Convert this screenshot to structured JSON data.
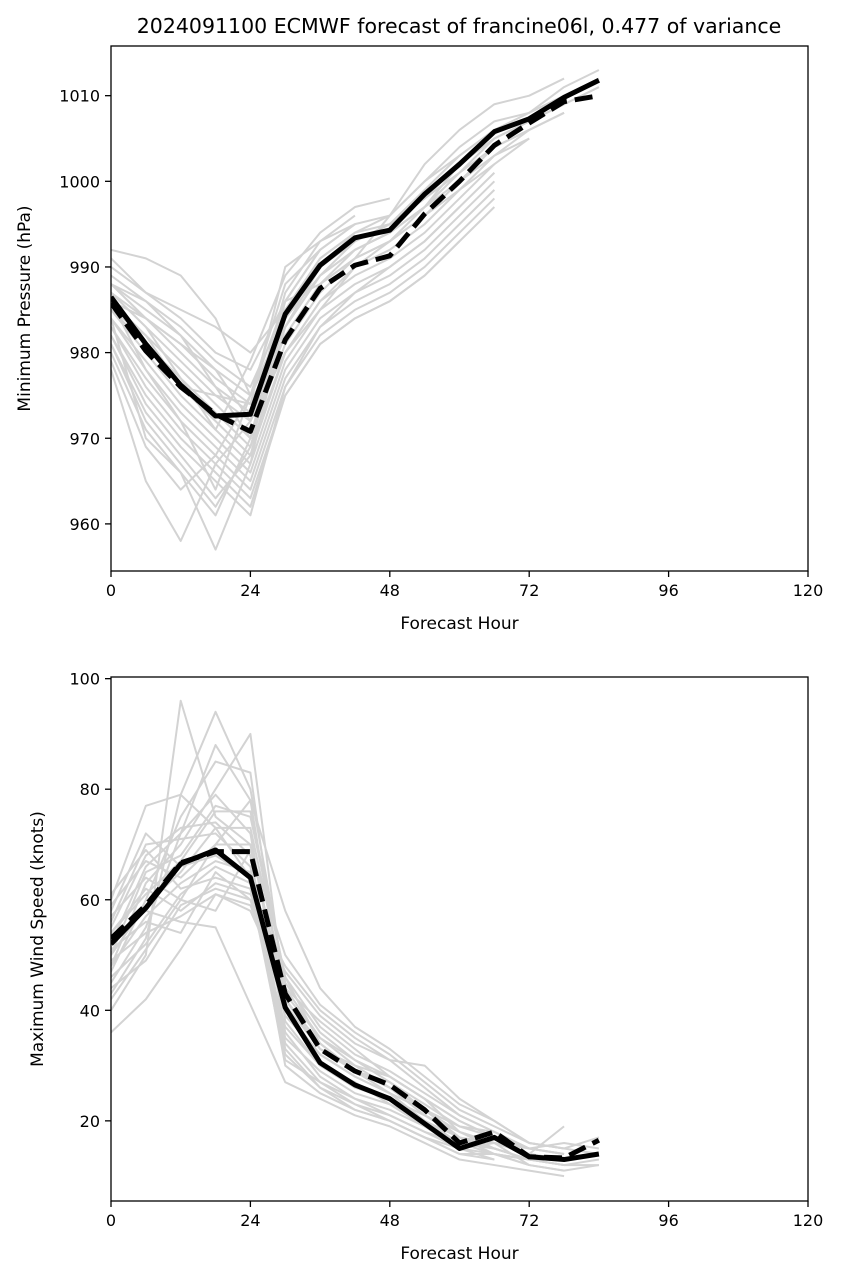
{
  "title": "2024091100 ECMWF forecast of francine06l, 0.477 of variance",
  "colors": {
    "ensemble": "#d3d3d3",
    "mean": "#000000",
    "deterministic": "#000000"
  },
  "chart_data": [
    {
      "type": "line",
      "xlabel": "Forecast Hour",
      "ylabel": "Minimum Pressure (hPa)",
      "xlim": [
        0,
        120
      ],
      "ylim": [
        954.5,
        1015.8
      ],
      "xticks": [
        0,
        24,
        48,
        72,
        96,
        120
      ],
      "yticks": [
        960,
        970,
        980,
        990,
        1000,
        1010
      ],
      "x": [
        0,
        6,
        12,
        18,
        24,
        30,
        36,
        42,
        48,
        54,
        60,
        66,
        72,
        78,
        84
      ],
      "series": [
        {
          "style": "solid",
          "values": [
            986.5,
            981,
            976.2,
            972.6,
            972.8,
            984.5,
            990.2,
            993.4,
            994.3,
            998.5,
            1002,
            1005.8,
            1007.3,
            1009.8,
            1011.8
          ]
        },
        {
          "style": "dashed",
          "values": [
            985.8,
            980.2,
            976,
            972.8,
            970.8,
            981.5,
            987.5,
            990.2,
            991.3,
            996.2,
            1000,
            1004.2,
            1006.8,
            1009.3,
            1010
          ]
        }
      ],
      "ensemble_members": [
        [
          992,
          991,
          989,
          984,
          975,
          983,
          990,
          994,
          996,
          1000,
          1004,
          1007,
          1008,
          1011,
          1013
        ],
        [
          991,
          987,
          985,
          983,
          980,
          985,
          991,
          994,
          995,
          999,
          1003,
          1006,
          1007,
          1009,
          1011
        ],
        [
          990,
          987,
          984,
          980,
          978,
          986,
          992,
          995,
          996,
          1000,
          1003,
          1006,
          1008,
          1010,
          1012
        ],
        [
          989,
          986,
          983,
          979,
          976,
          985,
          990,
          993,
          995,
          998,
          1002,
          1005,
          1007,
          1009,
          1011
        ],
        [
          988,
          985,
          982,
          978,
          975,
          984,
          989,
          993,
          995,
          998,
          1001,
          1005,
          1007,
          1009
        ],
        [
          988,
          984,
          981,
          977,
          974,
          983,
          989,
          992,
          994,
          997,
          1001,
          1004,
          1006,
          1008
        ],
        [
          987,
          984,
          980,
          976,
          973,
          982,
          988,
          992,
          994,
          997,
          1000,
          1004,
          1006,
          1008
        ],
        [
          987,
          983,
          979,
          975,
          972,
          982,
          988,
          991,
          993,
          996,
          1000,
          1003,
          1006
        ],
        [
          986,
          982,
          978,
          974,
          970,
          981,
          987,
          991,
          993,
          996,
          999,
          1003,
          1005
        ],
        [
          986,
          981,
          977,
          973,
          969,
          980,
          986,
          990,
          992,
          995,
          999,
          1002,
          1005
        ],
        [
          985,
          981,
          976,
          972,
          968,
          980,
          986,
          989,
          991,
          994,
          998,
          1002
        ],
        [
          985,
          980,
          975,
          971,
          967,
          979,
          985,
          988,
          990,
          993,
          997,
          1001
        ],
        [
          984,
          979,
          974,
          970,
          966,
          978,
          984,
          987,
          989,
          992,
          996,
          1000
        ],
        [
          984,
          978,
          973,
          969,
          965,
          977,
          983,
          986,
          988,
          991,
          995,
          999
        ],
        [
          983,
          977,
          972,
          968,
          964,
          976,
          982,
          985,
          987,
          990,
          994,
          998
        ],
        [
          983,
          976,
          971,
          967,
          963,
          975,
          981,
          984,
          986,
          989,
          993,
          997
        ],
        [
          982,
          975,
          970,
          966,
          962,
          975,
          981,
          984,
          986,
          989,
          993
        ],
        [
          982,
          974,
          969,
          965,
          961,
          976,
          983,
          987,
          990,
          993,
          997
        ],
        [
          981,
          973,
          968,
          963,
          968,
          983,
          989,
          992,
          994,
          997
        ],
        [
          981,
          972,
          967,
          962,
          969,
          984,
          990,
          993,
          995,
          998
        ],
        [
          980,
          971,
          966,
          961,
          970,
          985,
          991,
          994
        ],
        [
          979,
          969,
          964,
          968,
          975,
          986,
          992,
          995
        ],
        [
          978,
          965,
          958,
          967,
          972,
          987,
          993,
          996
        ],
        [
          984,
          970,
          966,
          957,
          967,
          985,
          990,
          993
        ],
        [
          986,
          978,
          972,
          964,
          975,
          988,
          992
        ],
        [
          987,
          983,
          977,
          971,
          979,
          989,
          994,
          997,
          998
        ],
        [
          985,
          982,
          976,
          975,
          974,
          990,
          993,
          995
        ],
        [
          988,
          986,
          982,
          976,
          970,
          986,
          988,
          991,
          996,
          1002,
          1006,
          1009,
          1010,
          1012
        ],
        [
          986,
          984,
          981,
          978,
          972,
          980,
          985,
          990,
          993,
          997,
          1002,
          1005,
          1007
        ]
      ]
    },
    {
      "type": "line",
      "xlabel": "Forecast Hour",
      "ylabel": "Maximum Wind Speed (knots)",
      "xlim": [
        0,
        120
      ],
      "ylim": [
        5.5,
        100.3
      ],
      "xticks": [
        0,
        24,
        48,
        72,
        96,
        120
      ],
      "yticks": [
        20,
        40,
        60,
        80,
        100
      ],
      "x": [
        0,
        6,
        12,
        18,
        24,
        30,
        36,
        42,
        48,
        54,
        60,
        66,
        72,
        78,
        84
      ],
      "series": [
        {
          "style": "solid",
          "values": [
            52,
            58.5,
            66.5,
            69,
            64,
            40.5,
            30.5,
            26.5,
            24,
            19.5,
            15,
            17,
            13.5,
            13,
            14
          ]
        },
        {
          "style": "dashed",
          "values": [
            53,
            59,
            66.7,
            68.7,
            68.7,
            43,
            33,
            29,
            26.5,
            22,
            16,
            18,
            13.5,
            13.3,
            16.5
          ]
        }
      ],
      "ensemble_members": [
        [
          36,
          42,
          51,
          61,
          58,
          44,
          38,
          33,
          28,
          24,
          18,
          16,
          12,
          11,
          12
        ],
        [
          40,
          50,
          96,
          75,
          70,
          42,
          34,
          29,
          26,
          22,
          17,
          14,
          13,
          12,
          13
        ],
        [
          43,
          53,
          79,
          94,
          80,
          45,
          36,
          31,
          27,
          22,
          18,
          15,
          13,
          12
        ],
        [
          45,
          55,
          72,
          88,
          78,
          40,
          32,
          28,
          25,
          20,
          16,
          15,
          13,
          12
        ],
        [
          47,
          60,
          75,
          85,
          83,
          38,
          30,
          27,
          23,
          19,
          15,
          14,
          12
        ],
        [
          48,
          63,
          70,
          80,
          90,
          42,
          33,
          30,
          26,
          21,
          17,
          15,
          13
        ],
        [
          50,
          65,
          68,
          77,
          75,
          46,
          34,
          29,
          25,
          20,
          16,
          14,
          12,
          11
        ],
        [
          52,
          66,
          72,
          79,
          72,
          36,
          28,
          24,
          21,
          18,
          15,
          13
        ],
        [
          55,
          68,
          73,
          74,
          68,
          34,
          27,
          23,
          20,
          17,
          14,
          13
        ],
        [
          56,
          70,
          71,
          72,
          66,
          33,
          26,
          22,
          20,
          17,
          15,
          16,
          15,
          16,
          15
        ],
        [
          58,
          72,
          66,
          68,
          64,
          32,
          26,
          23,
          21,
          18,
          16,
          14,
          13,
          12,
          12
        ],
        [
          60,
          77,
          79,
          73,
          64,
          30,
          25,
          22,
          20,
          17,
          14,
          14,
          13,
          13
        ],
        [
          61,
          69,
          62,
          64,
          62,
          31,
          27,
          24,
          22,
          19,
          16,
          15,
          13
        ],
        [
          59,
          67,
          64,
          70,
          78,
          58,
          44,
          37,
          33,
          28,
          23,
          20,
          16,
          15,
          17
        ],
        [
          57,
          64,
          60,
          58,
          69,
          50,
          41,
          36,
          32,
          27,
          22,
          19,
          16,
          15
        ],
        [
          54,
          62,
          58,
          63,
          61,
          47,
          39,
          34,
          31,
          26,
          21,
          18,
          15,
          14
        ],
        [
          53,
          58,
          56,
          55,
          41,
          27,
          24,
          21,
          19,
          16,
          13,
          12,
          11,
          10
        ],
        [
          51,
          56,
          54,
          65,
          60,
          48,
          40,
          35,
          31,
          30,
          24,
          20,
          16,
          15,
          14
        ],
        [
          49,
          54,
          57,
          61,
          59,
          43,
          35,
          31,
          28,
          24,
          20,
          17,
          14,
          13
        ],
        [
          46,
          52,
          61,
          66,
          63,
          39,
          32,
          28,
          25,
          22,
          19,
          17,
          15,
          14
        ],
        [
          44,
          49,
          59,
          62,
          60,
          37,
          30,
          26,
          24,
          21,
          18,
          16,
          14,
          19
        ],
        [
          48,
          57,
          63,
          67,
          65,
          35,
          29,
          25,
          23,
          20,
          17,
          16,
          14,
          13
        ],
        [
          42,
          51,
          60,
          70,
          70,
          41,
          33,
          29,
          27,
          23,
          19,
          18,
          15,
          14
        ],
        [
          50,
          59,
          65,
          73,
          73,
          44,
          35,
          30,
          28,
          24,
          20,
          17,
          15
        ],
        [
          54,
          61,
          67,
          76,
          76,
          46,
          37,
          32,
          29,
          25,
          21,
          18
        ]
      ]
    }
  ]
}
